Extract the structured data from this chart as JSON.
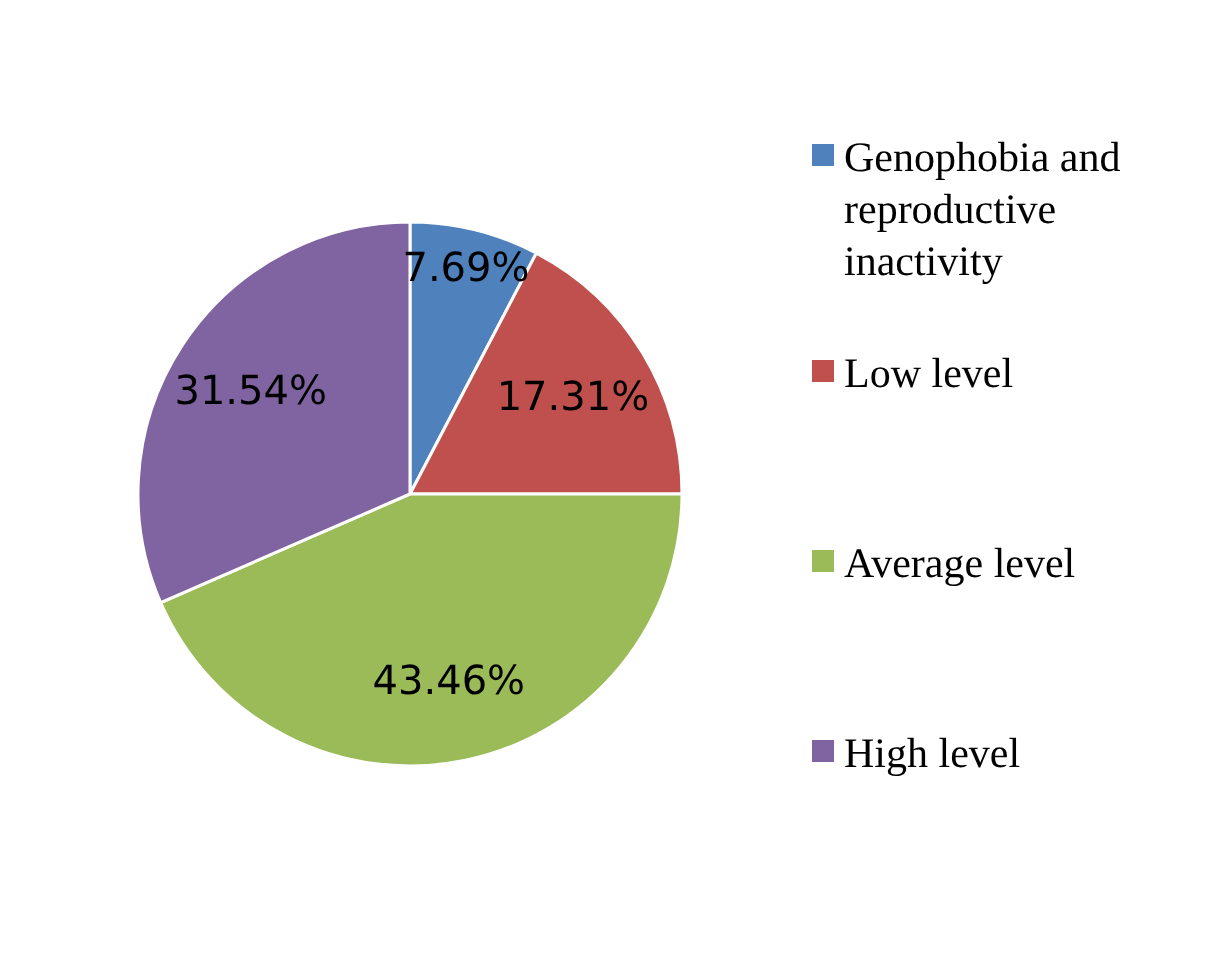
{
  "chart_data": {
    "type": "pie",
    "categories": [
      "Genophobia and reproductive inactivity",
      "Low level",
      "Average level",
      "High level"
    ],
    "values": [
      7.69,
      17.31,
      43.46,
      31.54
    ],
    "colors": [
      "#4f81bd",
      "#c0504d",
      "#9bbb59",
      "#8064a2"
    ],
    "value_labels": [
      "7.69%",
      "17.31%",
      "43.46%",
      "31.54%"
    ],
    "legend": "right"
  }
}
